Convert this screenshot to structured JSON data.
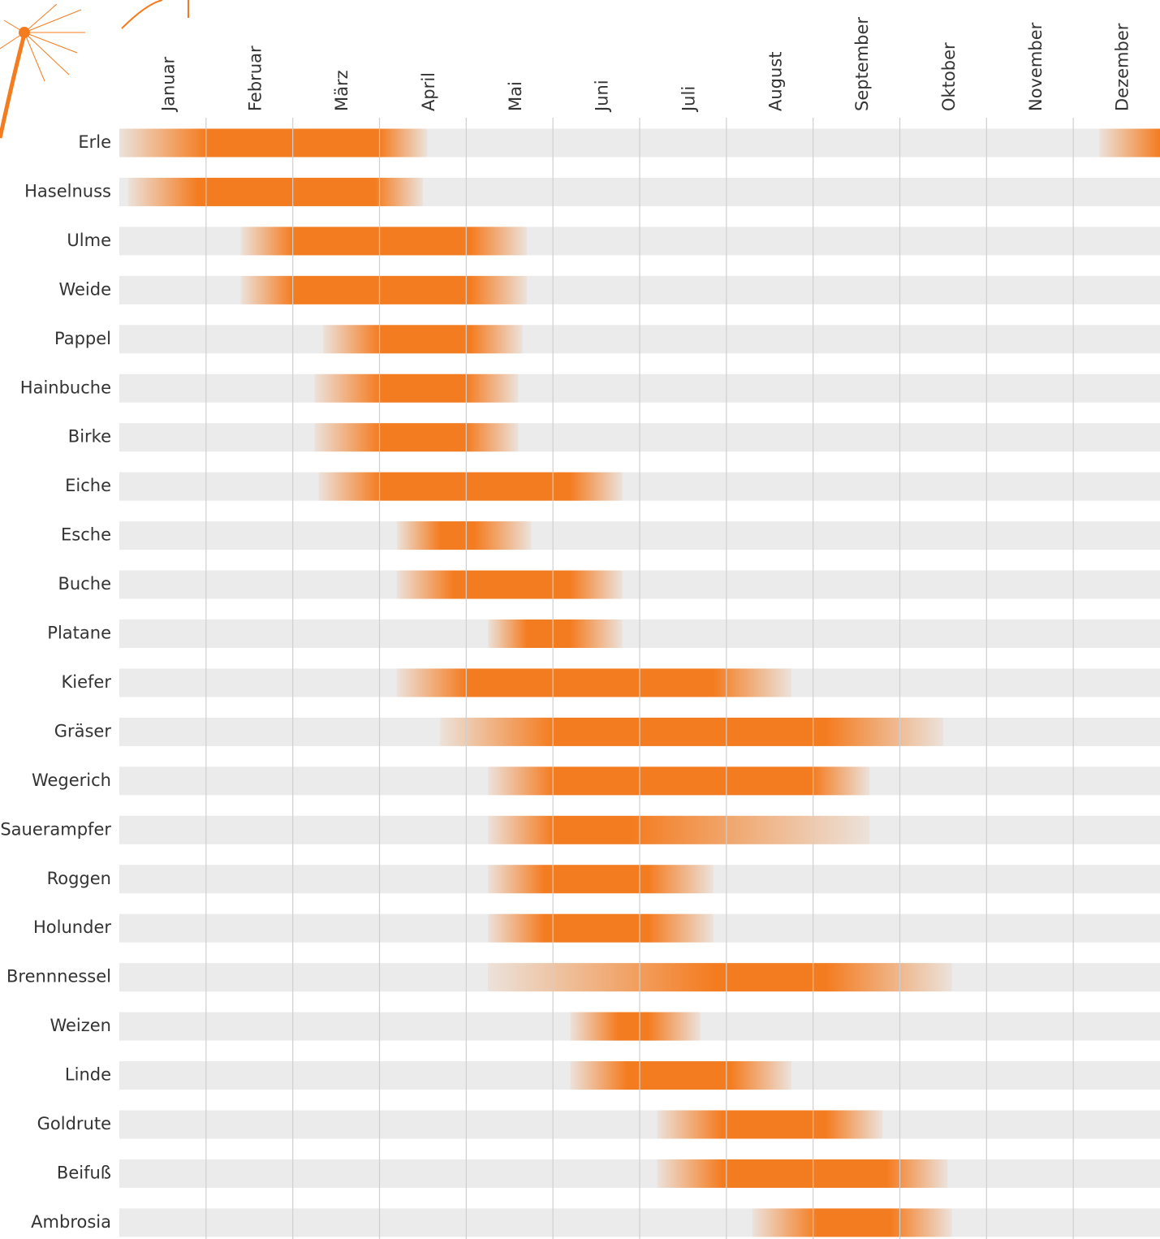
{
  "chart_data": {
    "type": "range",
    "categories": [
      "Januar",
      "Februar",
      "März",
      "April",
      "Mai",
      "Juni",
      "Juli",
      "August",
      "September",
      "Oktober",
      "November",
      "Dezember"
    ],
    "xlim": [
      0,
      12
    ],
    "grid": true,
    "color": "#f47c20",
    "track_color": "#ebebeb",
    "series": [
      {
        "name": "Erle",
        "ranges": [
          [
            0,
            1,
            3,
            3.55
          ],
          [
            11.3,
            12,
            12,
            12
          ]
        ]
      },
      {
        "name": "Haselnuss",
        "ranges": [
          [
            0.1,
            0.9,
            2.95,
            3.5
          ]
        ]
      },
      {
        "name": "Ulme",
        "ranges": [
          [
            1.4,
            2.0,
            4.05,
            4.7
          ]
        ]
      },
      {
        "name": "Weide",
        "ranges": [
          [
            1.4,
            2.0,
            4.05,
            4.7
          ]
        ]
      },
      {
        "name": "Pappel",
        "ranges": [
          [
            2.35,
            3.0,
            4.05,
            4.65
          ]
        ]
      },
      {
        "name": "Hainbuche",
        "ranges": [
          [
            2.25,
            3.0,
            4.0,
            4.6
          ]
        ]
      },
      {
        "name": "Birke",
        "ranges": [
          [
            2.25,
            3.0,
            4.0,
            4.6
          ]
        ]
      },
      {
        "name": "Eiche",
        "ranges": [
          [
            2.3,
            3.0,
            5.2,
            5.8
          ]
        ]
      },
      {
        "name": "Esche",
        "ranges": [
          [
            3.2,
            3.7,
            4.1,
            4.75
          ]
        ]
      },
      {
        "name": "Buche",
        "ranges": [
          [
            3.2,
            3.85,
            5.2,
            5.8
          ]
        ]
      },
      {
        "name": "Platane",
        "ranges": [
          [
            4.25,
            4.7,
            5.2,
            5.8
          ]
        ]
      },
      {
        "name": "Kiefer",
        "ranges": [
          [
            3.2,
            4.0,
            6.85,
            7.75
          ]
        ]
      },
      {
        "name": "Gräser",
        "ranges": [
          [
            3.7,
            5.0,
            8.15,
            9.5
          ]
        ]
      },
      {
        "name": "Wegerich",
        "ranges": [
          [
            4.25,
            5.0,
            8.0,
            8.65
          ]
        ]
      },
      {
        "name": "Sauerampfer",
        "ranges": [
          [
            4.25,
            5.0,
            5.9,
            8.65
          ]
        ]
      },
      {
        "name": "Roggen",
        "ranges": [
          [
            4.25,
            4.9,
            6.1,
            6.85
          ]
        ]
      },
      {
        "name": "Holunder",
        "ranges": [
          [
            4.25,
            4.9,
            6.1,
            6.85
          ]
        ]
      },
      {
        "name": "Brennnessel",
        "ranges": [
          [
            4.25,
            6.85,
            8.15,
            9.6
          ]
        ]
      },
      {
        "name": "Weizen",
        "ranges": [
          [
            5.2,
            5.75,
            6.1,
            6.7
          ]
        ]
      },
      {
        "name": "Linde",
        "ranges": [
          [
            5.2,
            5.85,
            7.05,
            7.75
          ]
        ]
      },
      {
        "name": "Goldrute",
        "ranges": [
          [
            6.2,
            6.95,
            8.15,
            8.8
          ]
        ]
      },
      {
        "name": "Beifuß",
        "ranges": [
          [
            6.2,
            6.95,
            8.85,
            9.55
          ]
        ]
      },
      {
        "name": "Ambrosia",
        "ranges": [
          [
            7.3,
            8.05,
            8.9,
            9.6
          ]
        ]
      }
    ]
  }
}
